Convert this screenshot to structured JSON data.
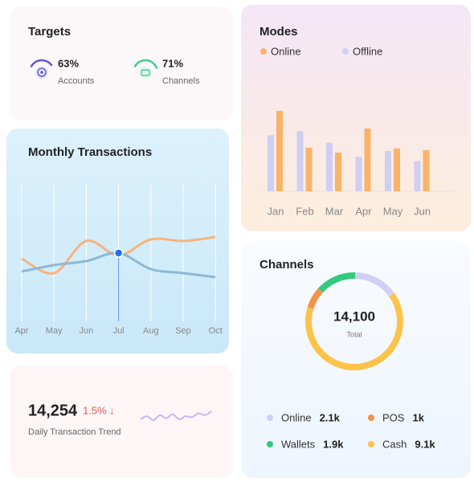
{
  "targets": {
    "title": "Targets",
    "items": [
      {
        "name": "Accounts",
        "value": 63,
        "label": "63%",
        "color": "#5b5bd6"
      },
      {
        "name": "Channels",
        "value": 71,
        "label": "71%",
        "color": "#3ecf8e"
      }
    ]
  },
  "modes": {
    "type": "bar",
    "title": "Modes",
    "categories": [
      "Jan",
      "Feb",
      "Mar",
      "Apr",
      "May",
      "Jun"
    ],
    "series": [
      {
        "name": "Online",
        "color": "#f9b36b",
        "values": [
          96,
          52,
          46,
          75,
          51,
          49
        ]
      },
      {
        "name": "Offline",
        "color": "#cfcff3",
        "values": [
          67,
          72,
          58,
          41,
          48,
          36
        ]
      }
    ]
  },
  "monthly": {
    "type": "line",
    "title": "Monthly Transactions",
    "categories": [
      "Apr",
      "May",
      "Jun",
      "Jul",
      "Aug",
      "Sep",
      "Oct"
    ],
    "series": [
      {
        "color": "#f7b47a",
        "values": [
          78,
          60,
          100,
          82,
          102,
          100,
          105
        ]
      },
      {
        "color": "#8fb8d4",
        "values": [
          62,
          70,
          75,
          85,
          65,
          60,
          55
        ]
      }
    ],
    "highlight": 3,
    "highlight_color": "#1f6ff2"
  },
  "channels": {
    "type": "donut",
    "title": "Channels",
    "total": {
      "value": 14100,
      "label": "14,100"
    },
    "total_label": "Total",
    "series": [
      {
        "name": "Online",
        "color": "#d2cff5",
        "value": 2100,
        "value_label": "2.1k"
      },
      {
        "name": "Cash",
        "color": "#fbc34a",
        "value": 9100,
        "value_label": "9.1k"
      },
      {
        "name": "POS",
        "color": "#f5924a",
        "value": 1000,
        "value_label": "1k"
      },
      {
        "name": "Wallets",
        "color": "#34c97f",
        "value": 1900,
        "value_label": "1.9k"
      }
    ]
  },
  "daily": {
    "value": {
      "value": 14254,
      "label": "14,254"
    },
    "change": {
      "value": 1.5,
      "label": "1.5%"
    },
    "direction": "↓",
    "label": "Daily Transaction Trend",
    "color": "#c3b8f0",
    "values": [
      5,
      8,
      4,
      9,
      6,
      10,
      5,
      8,
      7,
      11,
      9,
      13
    ]
  }
}
